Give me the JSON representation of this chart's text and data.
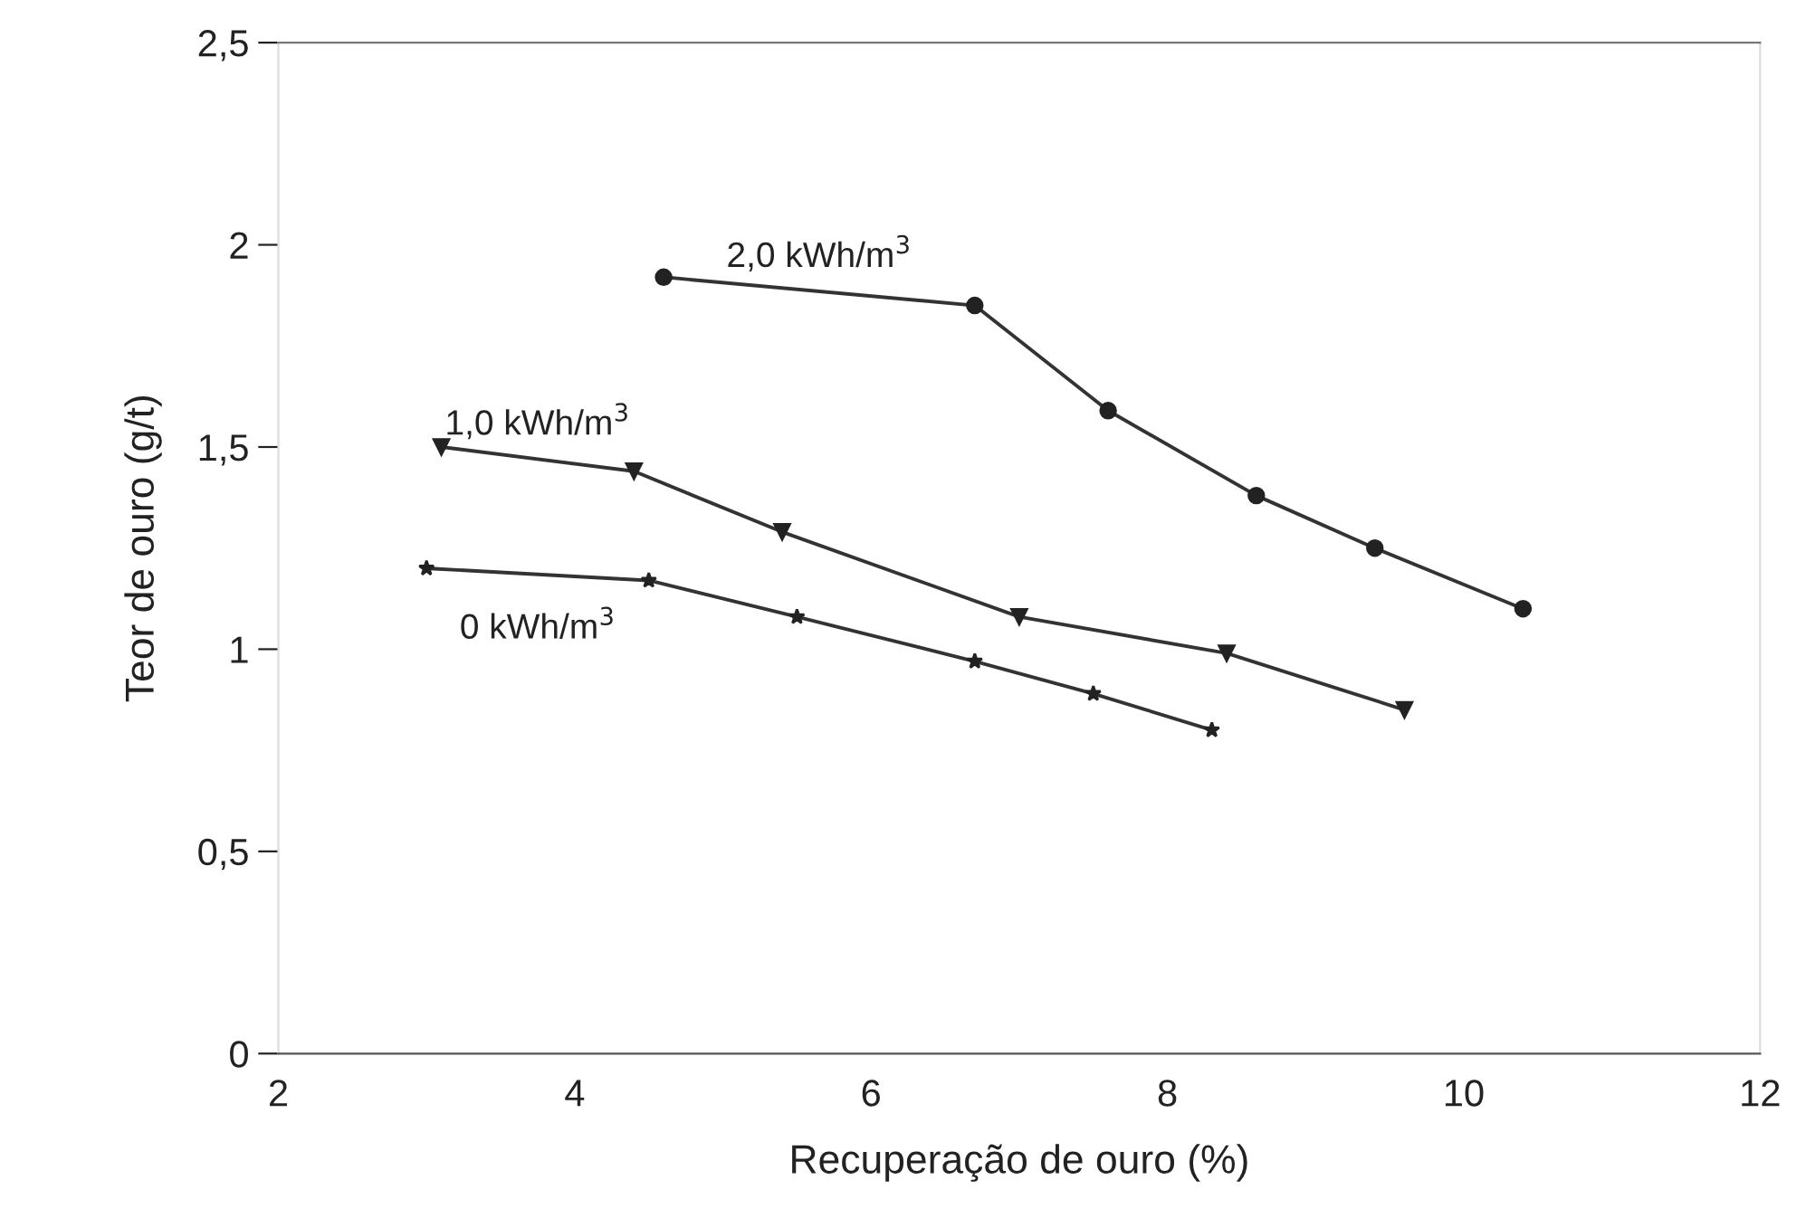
{
  "chart_data": {
    "type": "line",
    "xlabel": "Recuperação de ouro (%)",
    "ylabel": "Teor de ouro (g/t)",
    "xlim": [
      2,
      12
    ],
    "xticks": [
      2,
      4,
      6,
      8,
      10,
      12
    ],
    "ylim": [
      0,
      2.5
    ],
    "yticks": [
      0,
      {
        "value": 0.5,
        "label": "0,5"
      },
      1,
      {
        "value": 1.5,
        "label": "1,5"
      },
      2,
      {
        "value": 2.5,
        "label": "2,5"
      }
    ],
    "grid": false,
    "legend": false,
    "line_style": "solid",
    "series": [
      {
        "name": "2,0 kWh/m$^{3}$",
        "color": "#333333",
        "marker": "circle",
        "x": [
          4.6,
          6.7,
          7.6,
          8.6,
          9.4,
          10.4
        ],
        "values": [
          1.92,
          1.85,
          1.59,
          1.38,
          1.25,
          1.1
        ]
      },
      {
        "name": "1,0 kWh/m$^{3}$",
        "color": "#333333",
        "marker": "triangle",
        "x": [
          3.1,
          4.4,
          5.4,
          7.0,
          8.4,
          9.6
        ],
        "values": [
          1.5,
          1.44,
          1.29,
          1.08,
          0.99,
          0.85
        ]
      },
      {
        "name": "0 kWh/m$^{3}$",
        "color": "#333333",
        "marker": "star",
        "x": [
          3.0,
          4.5,
          5.5,
          6.7,
          7.5,
          8.3
        ],
        "values": [
          1.2,
          1.17,
          1.08,
          0.97,
          0.89,
          0.8
        ]
      }
    ]
  }
}
